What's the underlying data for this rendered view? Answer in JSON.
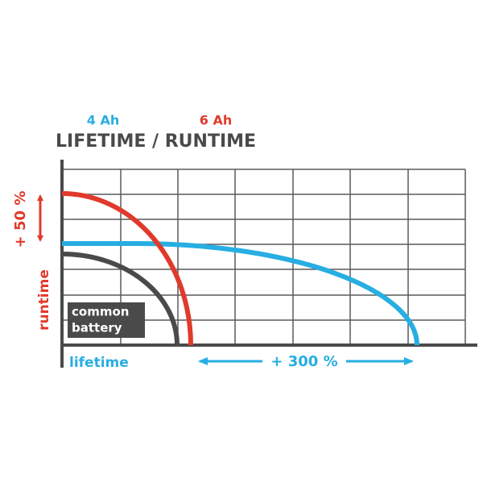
{
  "header": {
    "small_label": "4 Ah",
    "large_label": "6 Ah",
    "title": "LIFETIME / RUNTIME"
  },
  "y_axis": {
    "label": "runtime",
    "gain": "+ 50 %"
  },
  "x_axis": {
    "label": "lifetime",
    "gain": "+ 300 %"
  },
  "legend": {
    "line1": "common",
    "line2": "battery"
  }
}
